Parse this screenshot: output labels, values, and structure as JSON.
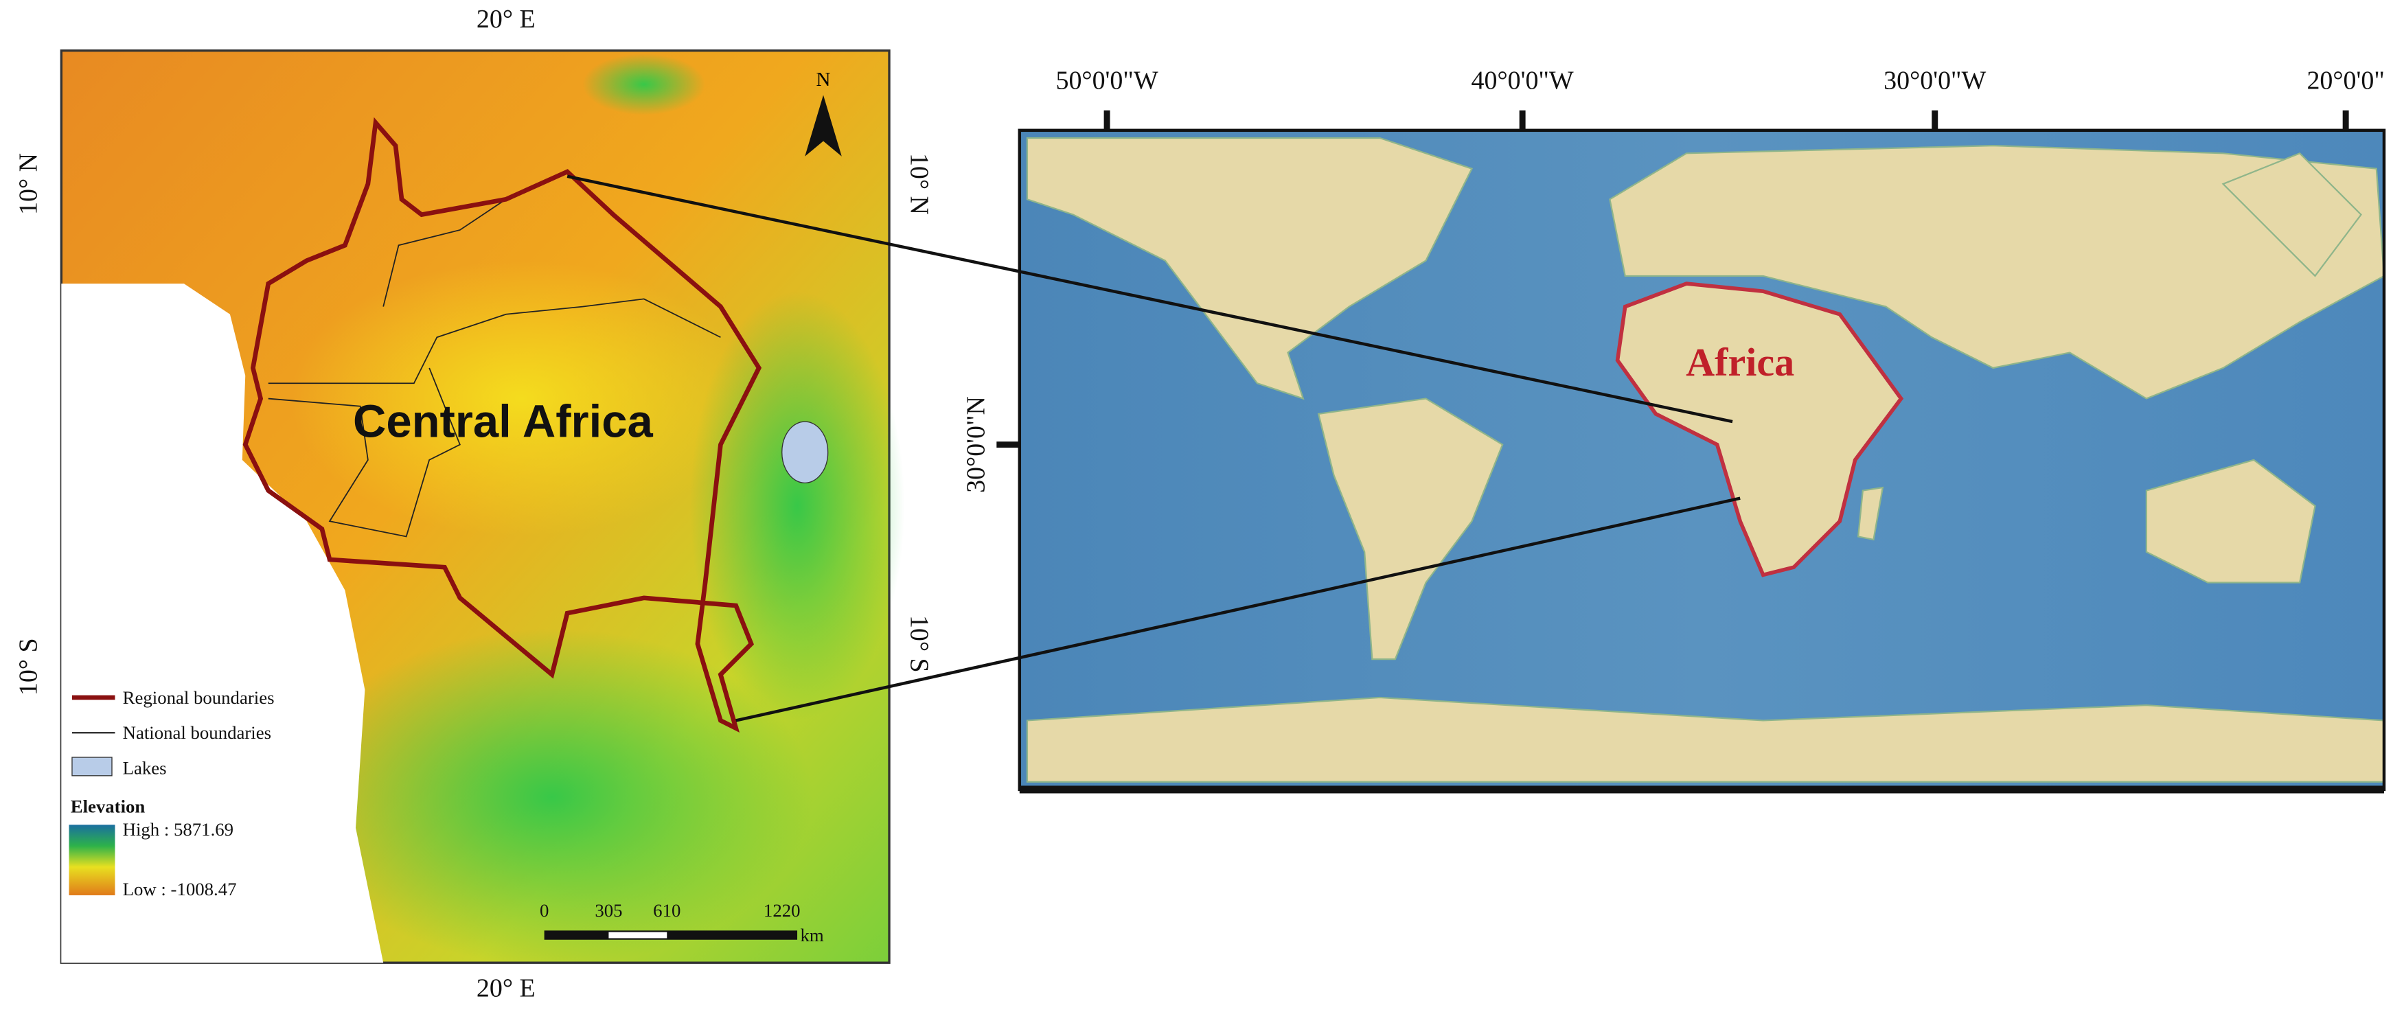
{
  "left_map": {
    "top_label": "20° E",
    "bottom_label": "20° E",
    "left_labels": [
      "10° N",
      "10° S"
    ],
    "right_labels": [
      "10° N",
      "10° S"
    ],
    "north": "N",
    "region_label": "Central Africa",
    "legend": {
      "items": [
        "Regional boundaries",
        "National boundaries",
        "Lakes"
      ],
      "title": "Elevation",
      "high": "High : 5871.69",
      "low": "Low : -1008.47"
    },
    "scale_bar": {
      "labels": [
        "0",
        "305",
        "610",
        "1220"
      ],
      "unit": "km"
    }
  },
  "right_map": {
    "top_labels": [
      "50°0'0\"W",
      "40°0'0\"W",
      "30°0'0\"W",
      "20°0'0\""
    ],
    "left_label": "30°0'0\"N",
    "region_label": "Africa"
  }
}
